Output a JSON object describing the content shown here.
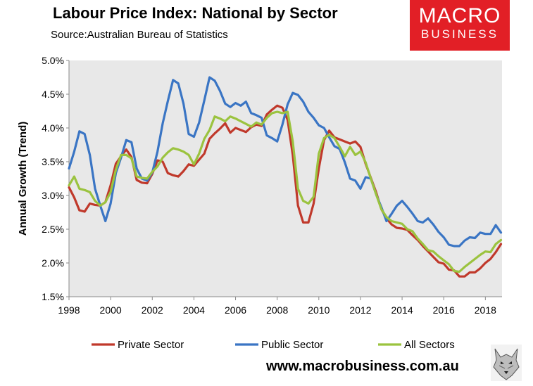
{
  "header": {
    "title": "Labour Price Index: National by Sector",
    "source": "Source:Australian Bureau of Statistics"
  },
  "logo": {
    "line1": "MACRO",
    "line2": "BUSINESS",
    "color": "#e21f26"
  },
  "footer": {
    "website": "www.macrobusiness.com.au"
  },
  "chart_data": {
    "type": "line",
    "title": "Labour Price Index: National by Sector",
    "xlabel": "",
    "ylabel": "Annual Growth (Trend)",
    "xlim": [
      1998,
      2018.8
    ],
    "ylim": [
      1.5,
      5.0
    ],
    "y_ticks": [
      1.5,
      2.0,
      2.5,
      3.0,
      3.5,
      4.0,
      4.5,
      5.0
    ],
    "y_tick_labels": [
      "1.5%",
      "2.0%",
      "2.5%",
      "3.0%",
      "3.5%",
      "4.0%",
      "4.5%",
      "5.0%"
    ],
    "x_ticks": [
      1998,
      2000,
      2002,
      2004,
      2006,
      2008,
      2010,
      2012,
      2014,
      2016,
      2018
    ],
    "x_tick_labels": [
      "1998",
      "2000",
      "2002",
      "2004",
      "2006",
      "2008",
      "2010",
      "2012",
      "2014",
      "2016",
      "2018"
    ],
    "grid": false,
    "plot_background": "#e8e8e8",
    "legend_position": "bottom",
    "series": [
      {
        "name": "Private Sector",
        "color": "#c0392b",
        "x": [
          1998.0,
          1998.25,
          1998.5,
          1998.75,
          1999.0,
          1999.25,
          1999.5,
          1999.75,
          2000.0,
          2000.25,
          2000.5,
          2000.75,
          2001.0,
          2001.25,
          2001.5,
          2001.75,
          2002.0,
          2002.25,
          2002.5,
          2002.75,
          2003.0,
          2003.25,
          2003.5,
          2003.75,
          2004.0,
          2004.25,
          2004.5,
          2004.75,
          2005.0,
          2005.25,
          2005.5,
          2005.75,
          2006.0,
          2006.25,
          2006.5,
          2006.75,
          2007.0,
          2007.25,
          2007.5,
          2007.75,
          2008.0,
          2008.25,
          2008.5,
          2008.75,
          2009.0,
          2009.25,
          2009.5,
          2009.75,
          2010.0,
          2010.25,
          2010.5,
          2010.75,
          2011.0,
          2011.25,
          2011.5,
          2011.75,
          2012.0,
          2012.25,
          2012.5,
          2012.75,
          2013.0,
          2013.25,
          2013.5,
          2013.75,
          2014.0,
          2014.25,
          2014.5,
          2014.75,
          2015.0,
          2015.25,
          2015.5,
          2015.75,
          2016.0,
          2016.25,
          2016.5,
          2016.75,
          2017.0,
          2017.25,
          2017.5,
          2017.75,
          2018.0,
          2018.25,
          2018.5,
          2018.75
        ],
        "values": [
          3.12,
          2.97,
          2.78,
          2.76,
          2.88,
          2.86,
          2.85,
          2.9,
          3.15,
          3.47,
          3.58,
          3.68,
          3.57,
          3.23,
          3.19,
          3.18,
          3.32,
          3.52,
          3.5,
          3.33,
          3.3,
          3.28,
          3.36,
          3.46,
          3.44,
          3.53,
          3.62,
          3.84,
          3.92,
          3.99,
          4.07,
          3.93,
          4.0,
          3.97,
          3.94,
          4.01,
          4.05,
          4.03,
          4.2,
          4.27,
          4.33,
          4.3,
          4.12,
          3.6,
          2.85,
          2.6,
          2.6,
          2.88,
          3.4,
          3.82,
          3.96,
          3.86,
          3.83,
          3.8,
          3.77,
          3.8,
          3.72,
          3.47,
          3.26,
          3.05,
          2.8,
          2.66,
          2.57,
          2.52,
          2.51,
          2.49,
          2.41,
          2.34,
          2.25,
          2.17,
          2.09,
          2.01,
          1.99,
          1.9,
          1.89,
          1.8,
          1.8,
          1.86,
          1.86,
          1.92,
          2.0,
          2.06,
          2.16,
          2.28
        ]
      },
      {
        "name": "Public Sector",
        "color": "#3a75c4",
        "x": [
          1998.0,
          1998.25,
          1998.5,
          1998.75,
          1999.0,
          1999.25,
          1999.5,
          1999.75,
          2000.0,
          2000.25,
          2000.5,
          2000.75,
          2001.0,
          2001.25,
          2001.5,
          2001.75,
          2002.0,
          2002.25,
          2002.5,
          2002.75,
          2003.0,
          2003.25,
          2003.5,
          2003.75,
          2004.0,
          2004.25,
          2004.5,
          2004.75,
          2005.0,
          2005.25,
          2005.5,
          2005.75,
          2006.0,
          2006.25,
          2006.5,
          2006.75,
          2007.0,
          2007.25,
          2007.5,
          2007.75,
          2008.0,
          2008.25,
          2008.5,
          2008.75,
          2009.0,
          2009.25,
          2009.5,
          2009.75,
          2010.0,
          2010.25,
          2010.5,
          2010.75,
          2011.0,
          2011.25,
          2011.5,
          2011.75,
          2012.0,
          2012.25,
          2012.5,
          2012.75,
          2013.0,
          2013.25,
          2013.5,
          2013.75,
          2014.0,
          2014.25,
          2014.5,
          2014.75,
          2015.0,
          2015.25,
          2015.5,
          2015.75,
          2016.0,
          2016.25,
          2016.5,
          2016.75,
          2017.0,
          2017.25,
          2017.5,
          2017.75,
          2018.0,
          2018.25,
          2018.5,
          2018.75
        ],
        "values": [
          3.4,
          3.65,
          3.95,
          3.91,
          3.6,
          3.1,
          2.85,
          2.62,
          2.88,
          3.33,
          3.56,
          3.82,
          3.79,
          3.4,
          3.25,
          3.22,
          3.34,
          3.65,
          4.07,
          4.4,
          4.71,
          4.66,
          4.36,
          3.91,
          3.87,
          4.08,
          4.41,
          4.75,
          4.7,
          4.55,
          4.36,
          4.31,
          4.37,
          4.33,
          4.39,
          4.22,
          4.19,
          4.15,
          3.89,
          3.85,
          3.8,
          4.05,
          4.35,
          4.52,
          4.49,
          4.39,
          4.24,
          4.15,
          4.04,
          4.0,
          3.86,
          3.73,
          3.69,
          3.49,
          3.25,
          3.22,
          3.1,
          3.27,
          3.25,
          3.02,
          2.83,
          2.62,
          2.73,
          2.85,
          2.92,
          2.83,
          2.73,
          2.62,
          2.6,
          2.66,
          2.57,
          2.46,
          2.38,
          2.27,
          2.25,
          2.25,
          2.33,
          2.38,
          2.37,
          2.45,
          2.43,
          2.43,
          2.56,
          2.45
        ]
      },
      {
        "name": "All Sectors",
        "color": "#9bc33f",
        "x": [
          1998.0,
          1998.25,
          1998.5,
          1998.75,
          1999.0,
          1999.25,
          1999.5,
          1999.75,
          2000.0,
          2000.25,
          2000.5,
          2000.75,
          2001.0,
          2001.25,
          2001.5,
          2001.75,
          2002.0,
          2002.25,
          2002.5,
          2002.75,
          2003.0,
          2003.25,
          2003.5,
          2003.75,
          2004.0,
          2004.25,
          2004.5,
          2004.75,
          2005.0,
          2005.25,
          2005.5,
          2005.75,
          2006.0,
          2006.25,
          2006.5,
          2006.75,
          2007.0,
          2007.25,
          2007.5,
          2007.75,
          2008.0,
          2008.25,
          2008.5,
          2008.75,
          2009.0,
          2009.25,
          2009.5,
          2009.75,
          2010.0,
          2010.25,
          2010.5,
          2010.75,
          2011.0,
          2011.25,
          2011.5,
          2011.75,
          2012.0,
          2012.25,
          2012.5,
          2012.75,
          2013.0,
          2013.25,
          2013.5,
          2013.75,
          2014.0,
          2014.25,
          2014.5,
          2014.75,
          2015.0,
          2015.25,
          2015.5,
          2015.75,
          2016.0,
          2016.25,
          2016.5,
          2016.75,
          2017.0,
          2017.25,
          2017.5,
          2017.75,
          2018.0,
          2018.25,
          2018.5,
          2018.75
        ],
        "values": [
          3.15,
          3.28,
          3.1,
          3.08,
          3.05,
          2.92,
          2.85,
          2.9,
          3.05,
          3.38,
          3.6,
          3.6,
          3.55,
          3.28,
          3.26,
          3.25,
          3.35,
          3.43,
          3.56,
          3.64,
          3.7,
          3.68,
          3.65,
          3.6,
          3.46,
          3.62,
          3.84,
          3.97,
          4.17,
          4.14,
          4.1,
          4.17,
          4.14,
          4.1,
          4.06,
          4.02,
          4.08,
          4.05,
          4.15,
          4.22,
          4.24,
          4.22,
          4.24,
          3.8,
          3.1,
          2.92,
          2.88,
          2.98,
          3.62,
          3.85,
          3.9,
          3.85,
          3.72,
          3.58,
          3.72,
          3.6,
          3.65,
          3.49,
          3.25,
          3.02,
          2.8,
          2.68,
          2.62,
          2.6,
          2.58,
          2.5,
          2.47,
          2.36,
          2.28,
          2.19,
          2.17,
          2.1,
          2.04,
          1.98,
          1.88,
          1.87,
          1.94,
          2.0,
          2.06,
          2.12,
          2.17,
          2.16,
          2.28,
          2.34
        ]
      }
    ]
  }
}
